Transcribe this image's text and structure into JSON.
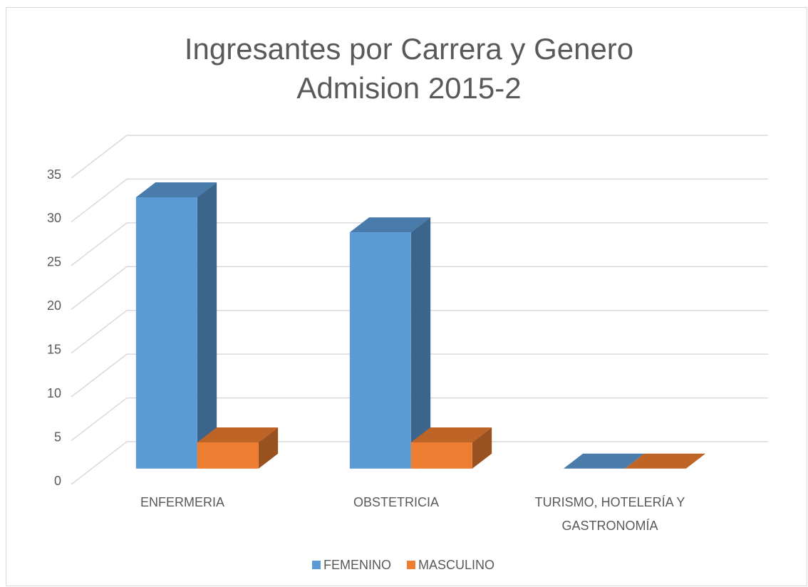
{
  "chart_data": {
    "type": "bar3d",
    "title": "Ingresantes por Carrera y Genero",
    "subtitle": "Admision 2015-2",
    "categories": [
      "ENFERMERIA",
      "OBSTETRICIA",
      "TURISMO, HOTELERÍA Y GASTRONOMÍA"
    ],
    "series": [
      {
        "name": "FEMENINO",
        "color": "#5b9bd5",
        "values": [
          31,
          27,
          0
        ]
      },
      {
        "name": "MASCULINO",
        "color": "#ed7d31",
        "values": [
          3,
          3,
          0
        ]
      }
    ],
    "ylim": [
      0,
      35
    ],
    "yticks": [
      0,
      5,
      10,
      15,
      20,
      25,
      30,
      35
    ],
    "grid": true,
    "legend": "bottom"
  }
}
